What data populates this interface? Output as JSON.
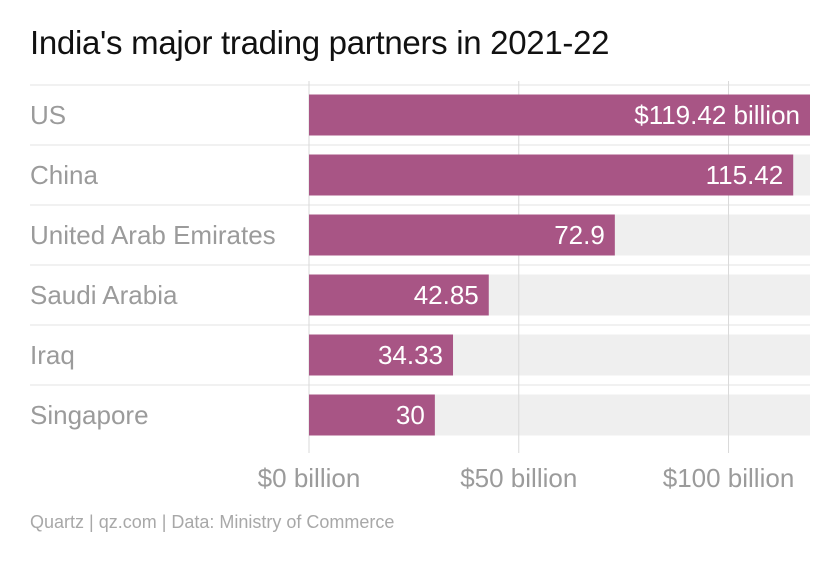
{
  "title": "India's major trading partners in 2021-22",
  "source": "Quartz | qz.com | Data: Ministry of Commerce",
  "colors": {
    "bar": "#a85585",
    "track": "#efefef",
    "category_text": "#9b9b9b",
    "tick_text": "#9b9b9b",
    "value_text": "#ffffff",
    "gridline": "#d9d9d9",
    "row_divider": "#e3e3e3"
  },
  "chart_data": {
    "type": "bar",
    "orientation": "horizontal",
    "categories": [
      "US",
      "China",
      "United Arab Emirates",
      "Saudi Arabia",
      "Iraq",
      "Singapore"
    ],
    "values": [
      119.42,
      115.42,
      72.9,
      42.85,
      34.33,
      30
    ],
    "value_labels": [
      "$119.42 billion",
      "115.42",
      "72.9",
      "42.85",
      "34.33",
      "30"
    ],
    "xlim": [
      0,
      119.42
    ],
    "x_ticks": [
      0,
      50,
      100
    ],
    "x_tick_labels": [
      "$0 billion",
      "$50 billion",
      "$100 billion"
    ],
    "grid": true,
    "legend": "none"
  }
}
